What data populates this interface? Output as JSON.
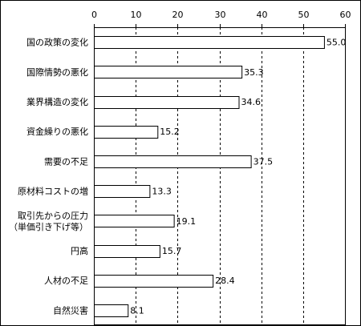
{
  "chart_data": {
    "type": "bar",
    "orientation": "horizontal",
    "categories": [
      [
        "国の政策の変化"
      ],
      [
        "国際情勢の悪化"
      ],
      [
        "業界構造の変化"
      ],
      [
        "資金繰りの悪化"
      ],
      [
        "需要の不足"
      ],
      [
        "原材料コストの増"
      ],
      [
        "取引先からの圧力",
        "（単価引き下げ等）"
      ],
      [
        "円高"
      ],
      [
        "人材の不足"
      ],
      [
        "自然災害"
      ]
    ],
    "values": [
      55.0,
      35.3,
      34.6,
      15.2,
      37.5,
      13.3,
      19.1,
      15.7,
      28.4,
      8.1
    ],
    "value_labels": [
      "55.0",
      "35.3",
      "34.6",
      "15.2",
      "37.5",
      "13.3",
      "19.1",
      "15.7",
      "28.4",
      "8.1"
    ],
    "xlim": [
      0,
      60
    ],
    "xticks": [
      "0",
      "10",
      "20",
      "30",
      "40",
      "50",
      "60"
    ],
    "x_axis_position": "top",
    "grid": "vertical dashed",
    "colors": {
      "bar_fill": "#ffffff",
      "bar_stroke": "#000000",
      "grid": "#000000",
      "text": "#000000",
      "frame": "#000000"
    }
  }
}
